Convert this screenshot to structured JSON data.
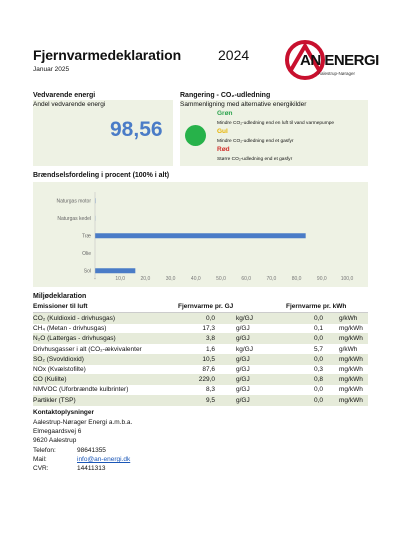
{
  "header": {
    "title": "Fjernvarmedeklaration",
    "year": "2024",
    "date": "Januar 2025",
    "logo_text": "AN ENERGI",
    "logo_sub": "Aalestrup-Nørager"
  },
  "renewable": {
    "heading": "Vedvarende energi",
    "label": "Andel vedvarende energi",
    "value": "98,56"
  },
  "rating": {
    "heading": "Rangering - CO₂-udledning",
    "subheading": "Sammenligning med alternative energikilder",
    "selected_color": "#27b24a",
    "green": {
      "label": "Grøn",
      "desc": "Mindre CO₂-udledning end en luft til vand varmepumpe"
    },
    "yellow": {
      "label": "Gul",
      "desc": "Mindre CO₂-udledning end et gasfyr"
    },
    "red": {
      "label": "Rød",
      "desc": "Større CO₂-udledning end et gasfyr"
    }
  },
  "chart_data": {
    "type": "bar",
    "orientation": "horizontal",
    "title": "Brændselsfordeling i procent (100% i alt)",
    "categories": [
      "Naturgas motor",
      "Naturgas kedel",
      "Træ",
      "Olie",
      "Sol"
    ],
    "values": [
      0.2,
      0.1,
      83.6,
      0.0,
      16.0
    ],
    "xlim": [
      0,
      100
    ],
    "ticks": [
      "-",
      "10,0",
      "20,0",
      "30,0",
      "40,0",
      "50,0",
      "60,0",
      "70,0",
      "80,0",
      "90,0",
      "100,0"
    ],
    "bar_color": "#4a7cc7",
    "grid": false
  },
  "emissions": {
    "heading": "Miljødeklaration",
    "col_label": "Emissioner til luft",
    "col_gj": "Fjernvarme pr. GJ",
    "col_kwh": "Fjernvarme pr. kWh",
    "rows": [
      {
        "name": "CO₂ (Kuldioxid - drivhusgas)",
        "gj": "0,0",
        "gj_unit": "kg/GJ",
        "kwh": "0,0",
        "kwh_unit": "g/kWh"
      },
      {
        "name": "CH₄ (Metan - drivhusgas)",
        "gj": "17,3",
        "gj_unit": "g/GJ",
        "kwh": "0,1",
        "kwh_unit": "mg/kWh"
      },
      {
        "name": "N₂O (Lattergas - drivhusgas)",
        "gj": "3,8",
        "gj_unit": "g/GJ",
        "kwh": "0,0",
        "kwh_unit": "mg/kWh"
      },
      {
        "name": "Drivhusgasser i alt (CO₂-ækvivalenter",
        "gj": "1,6",
        "gj_unit": "kg/GJ",
        "kwh": "5,7",
        "kwh_unit": "g/kWh"
      },
      {
        "name": "SO₂ (Svovldioxid)",
        "gj": "10,5",
        "gj_unit": "g/GJ",
        "kwh": "0,0",
        "kwh_unit": "mg/kWh"
      },
      {
        "name": "NOx (Kvælstofilte)",
        "gj": "87,6",
        "gj_unit": "g/GJ",
        "kwh": "0,3",
        "kwh_unit": "mg/kWh"
      },
      {
        "name": "CO (Kulilte)",
        "gj": "229,0",
        "gj_unit": "g/GJ",
        "kwh": "0,8",
        "kwh_unit": "mg/kWh"
      },
      {
        "name": "NMVOC (Uforbrændte kulbrinter)",
        "gj": "8,3",
        "gj_unit": "g/GJ",
        "kwh": "0,0",
        "kwh_unit": "mg/kWh"
      },
      {
        "name": "Partikler (TSP)",
        "gj": "9,5",
        "gj_unit": "g/GJ",
        "kwh": "0,0",
        "kwh_unit": "mg/kWh"
      }
    ]
  },
  "contact": {
    "heading": "Kontaktoplysninger",
    "company": "Aalestrup-Nørager Energi a.m.b.a.",
    "street": "Elmegaardsvej 6",
    "city": "9620 Aalestrup",
    "phone_label": "Telefon:",
    "phone": "98641355",
    "mail_label": "Mail:",
    "mail": "info@an-energi.dk",
    "cvr_label": "CVR:",
    "cvr": "14411313"
  }
}
